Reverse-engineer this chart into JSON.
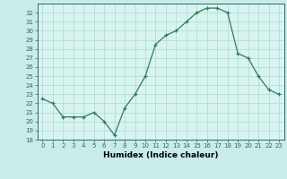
{
  "x": [
    0,
    1,
    2,
    3,
    4,
    5,
    6,
    7,
    8,
    9,
    10,
    11,
    12,
    13,
    14,
    15,
    16,
    17,
    18,
    19,
    20,
    21,
    22,
    23
  ],
  "y": [
    22.5,
    22.0,
    20.5,
    20.5,
    20.5,
    21.0,
    20.0,
    18.5,
    21.5,
    23.0,
    25.0,
    28.5,
    29.5,
    30.0,
    31.0,
    32.0,
    32.5,
    32.5,
    32.0,
    27.5,
    27.0,
    25.0,
    23.5,
    23.0
  ],
  "line_color": "#2e7b5e",
  "marker": "+",
  "markersize": 3,
  "linewidth": 0.9,
  "bg_color": "#c8ecea",
  "plot_bg_color": "#d8f4f0",
  "grid_color": "#aed8d4",
  "xlabel": "Humidex (Indice chaleur)",
  "ylabel": "",
  "ylim": [
    18,
    33
  ],
  "xlim": [
    -0.5,
    23.5
  ],
  "yticks": [
    18,
    19,
    20,
    21,
    22,
    23,
    24,
    25,
    26,
    27,
    28,
    29,
    30,
    31,
    32
  ],
  "xticks": [
    0,
    1,
    2,
    3,
    4,
    5,
    6,
    7,
    8,
    9,
    10,
    11,
    12,
    13,
    14,
    15,
    16,
    17,
    18,
    19,
    20,
    21,
    22,
    23
  ],
  "tick_fontsize": 5.0,
  "xlabel_fontsize": 6.5,
  "axis_color": "#336666",
  "spine_color": "#336666"
}
